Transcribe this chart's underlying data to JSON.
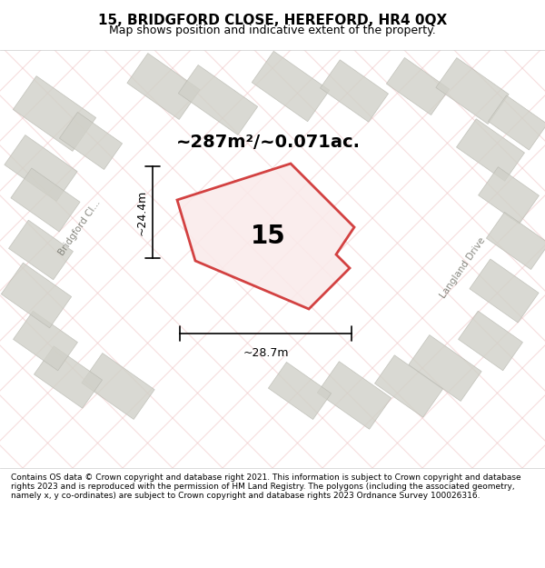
{
  "title": "15, BRIDGFORD CLOSE, HEREFORD, HR4 0QX",
  "subtitle": "Map shows position and indicative extent of the property.",
  "area_text": "~287m²/~0.071ac.",
  "label_15": "15",
  "dim_width": "~28.7m",
  "dim_height": "~24.4m",
  "street_label1": "Bridgford Cl...",
  "street_label2": "Langland Drive",
  "footer": "Contains OS data © Crown copyright and database right 2021. This information is subject to Crown copyright and database rights 2023 and is reproduced with the permission of HM Land Registry. The polygons (including the associated geometry, namely x, y co-ordinates) are subject to Crown copyright and database rights 2023 Ordnance Survey 100026316.",
  "bg_color": "#f0eeea",
  "map_bg": "#f0eeea",
  "plot_color": "#cc2222",
  "plot_fill": "#f5e8e8",
  "building_color": "#d8d8d0",
  "building_fill": "#d8d8d0",
  "road_line_color": "#e8e0d8",
  "grid_line_color": "#e8c8c8",
  "header_bg": "#ffffff",
  "footer_bg": "#ffffff"
}
